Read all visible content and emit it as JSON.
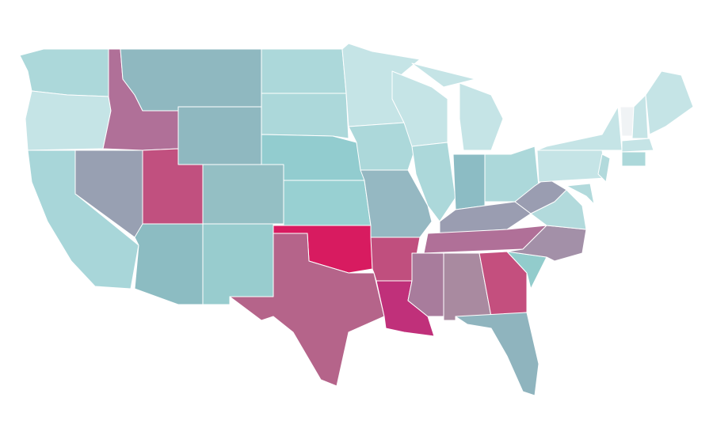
{
  "map": {
    "background": "#ffffff",
    "border": "#ffffff",
    "regions": [
      {
        "color": "#acd8da"
      },
      {
        "color": "#c5e4e6"
      },
      {
        "color": "#a8d6d9"
      },
      {
        "color": "#98a0b2"
      },
      {
        "color": "#b07098"
      },
      {
        "color": "#8fb8c0"
      },
      {
        "color": "#8fb8c0"
      },
      {
        "color": "#c1507f"
      },
      {
        "color": "#94bfc4"
      },
      {
        "color": "#8cbcc2"
      },
      {
        "color": "#98ccce"
      },
      {
        "color": "#acd8da"
      },
      {
        "color": "#acd8da"
      },
      {
        "color": "#92cccf"
      },
      {
        "color": "#98d0d2"
      },
      {
        "color": "#d81b60"
      },
      {
        "color": "#b5648a"
      },
      {
        "color": "#c5e4e6"
      },
      {
        "color": "#acd8da"
      },
      {
        "color": "#95b8c2"
      },
      {
        "color": "#c04f7e"
      },
      {
        "color": "#c0307a"
      },
      {
        "color": "#c5e4e6"
      },
      {
        "color": "#acd8da"
      },
      {
        "color": "#c5e4e6"
      },
      {
        "color": "#8cbcc4"
      },
      {
        "color": "#acd8da"
      },
      {
        "color": "#9a9db1"
      },
      {
        "color": "#b07098"
      },
      {
        "color": "#a87c9c"
      },
      {
        "color": "#a98aa0"
      },
      {
        "color": "#c44f7e"
      },
      {
        "color": "#8fb4be"
      },
      {
        "color": "#92cccc"
      },
      {
        "color": "#a390a8"
      },
      {
        "color": "#b2dadc"
      },
      {
        "color": "#9a9db1"
      },
      {
        "color": "#c5e4e6"
      },
      {
        "color": "#c5e4e6"
      },
      {
        "color": "#b2dadc"
      },
      {
        "color": "#b2dadc"
      },
      {
        "color": "#f0f3f5"
      },
      {
        "color": "#c5e4e6"
      },
      {
        "color": "#c5e4e6"
      },
      {
        "color": "#c5e4e6"
      },
      {
        "color": "#acd8da"
      }
    ]
  }
}
